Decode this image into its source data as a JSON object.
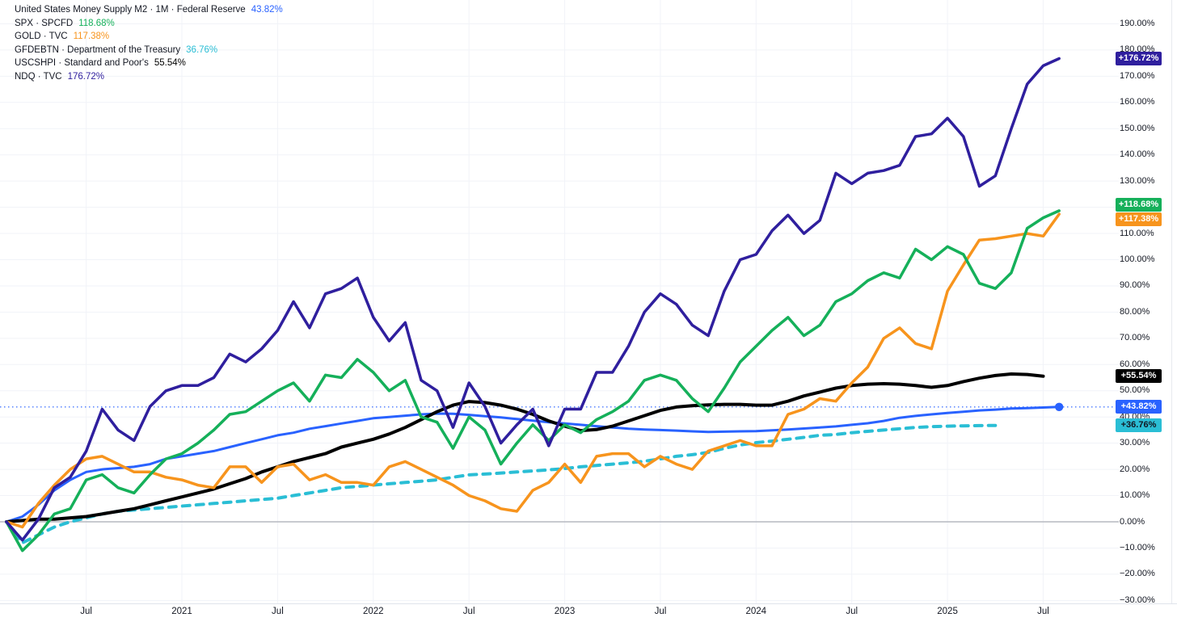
{
  "app": {
    "name": "price-percent-comparison-chart"
  },
  "legend": {
    "series": [
      {
        "series_id": "m2",
        "label": "United States Money Supply M2 · 1M · Federal Reserve",
        "value": "43.82%"
      },
      {
        "series_id": "spx",
        "label": "SPX · SPCFD",
        "value": "118.68%"
      },
      {
        "series_id": "gold",
        "label": "GOLD · TVC",
        "value": "117.38%"
      },
      {
        "series_id": "gfdebtn",
        "label": "GFDEBTN · Department of the Treasury",
        "value": "36.76%"
      },
      {
        "series_id": "uscshpi",
        "label": "USCSHPI · Standard and Poor's",
        "value": "55.54%"
      },
      {
        "series_id": "ndq",
        "label": "NDQ · TVC",
        "value": "176.72%"
      }
    ]
  },
  "y_axis": {
    "unit": "%",
    "tick_values": [
      190,
      180,
      170,
      160,
      150,
      140,
      130,
      120,
      110,
      100,
      90,
      80,
      70,
      60,
      50,
      40,
      30,
      20,
      10,
      0,
      -10,
      -20,
      -30
    ]
  },
  "x_axis": {
    "ticks": [
      {
        "label": "Jul",
        "month_index": 5
      },
      {
        "label": "2021",
        "month_index": 11
      },
      {
        "label": "Jul",
        "month_index": 17
      },
      {
        "label": "2022",
        "month_index": 23
      },
      {
        "label": "Jul",
        "month_index": 29
      },
      {
        "label": "2023",
        "month_index": 35
      },
      {
        "label": "Jul",
        "month_index": 41
      },
      {
        "label": "2024",
        "month_index": 47
      },
      {
        "label": "Jul",
        "month_index": 53
      },
      {
        "label": "2025",
        "month_index": 59
      },
      {
        "label": "Jul",
        "month_index": 65
      }
    ]
  },
  "price_badges": [
    {
      "series_id": "ndq",
      "text": "+176.72%",
      "bg": "#2f1f9e",
      "fg": "#ffffff",
      "value": 176.72
    },
    {
      "series_id": "spx",
      "text": "+118.68%",
      "bg": "#15b05a",
      "fg": "#ffffff",
      "value": 118.68
    },
    {
      "series_id": "gold",
      "text": "+117.38%",
      "bg": "#f7941d",
      "fg": "#ffffff",
      "value": 117.38
    },
    {
      "series_id": "uscshpi",
      "text": "+55.54%",
      "bg": "#000000",
      "fg": "#ffffff",
      "value": 55.54
    },
    {
      "series_id": "m2",
      "text": "+43.82%",
      "bg": "#2962ff",
      "fg": "#ffffff",
      "value": 43.82
    },
    {
      "series_id": "gfdebtn",
      "text": "+36.76%",
      "bg": "#2abed5",
      "fg": "#131722",
      "value": 36.76
    }
  ],
  "chart_data": {
    "type": "line",
    "x_start": "2020-02",
    "x_interval": "monthly",
    "x_end": "2025-08",
    "ylabel": "percent change since start date",
    "ylim": [
      -30,
      190
    ],
    "y_gridline_step": 10,
    "grid": true,
    "legend_position": "top-left",
    "baseline_value": 0,
    "current_price_line": {
      "series_id": "m2",
      "value": 43.82
    },
    "series": [
      {
        "id": "gfdebtn",
        "name": "GFDEBTN · Department of the Treasury",
        "color": "#2abed5",
        "line_style": "dashed",
        "line_width": 4,
        "end_value": 36.76,
        "values": [
          0,
          -8,
          -5,
          -2,
          0,
          1.5,
          3,
          4,
          4.5,
          5,
          5.5,
          6,
          6.5,
          7,
          7.5,
          8,
          8.5,
          9,
          10,
          11,
          12,
          13,
          13.5,
          14,
          14.5,
          15,
          15.5,
          16,
          17,
          17.9,
          18.2,
          18.6,
          19,
          19.4,
          19.8,
          20.3,
          21,
          21.5,
          22,
          22.5,
          23.1,
          24,
          25,
          25.6,
          26.5,
          28,
          29.3,
          30.2,
          30.8,
          31.5,
          32.2,
          33,
          33.3,
          34,
          34.5,
          35,
          35.5,
          36,
          36.3,
          36.5,
          36.6,
          36.7,
          36.76
        ]
      },
      {
        "id": "m2",
        "name": "United States Money Supply M2",
        "color": "#2962ff",
        "line_style": "solid",
        "line_width": 3,
        "end_dot": true,
        "end_value": 43.82,
        "values": [
          0,
          2,
          6.5,
          12,
          16,
          19,
          20,
          20.5,
          21,
          22,
          24,
          25,
          26,
          27,
          28.5,
          30,
          31.5,
          33,
          34,
          35.5,
          36.5,
          37.5,
          38.5,
          39.5,
          40,
          40.5,
          41,
          41.3,
          41.2,
          40.8,
          40.3,
          39.8,
          39.2,
          38.6,
          38,
          37.5,
          37,
          36.5,
          36,
          35.5,
          35.2,
          35,
          34.8,
          34.5,
          34.3,
          34.4,
          34.5,
          34.6,
          34.9,
          35.2,
          35.6,
          36,
          36.4,
          37,
          37.6,
          38.5,
          39.7,
          40.4,
          41,
          41.5,
          42,
          42.5,
          42.8,
          43.2,
          43.4,
          43.6,
          43.82
        ]
      },
      {
        "id": "uscshpi",
        "name": "USCSHPI · Standard and Poor's",
        "color": "#000000",
        "line_style": "solid",
        "line_width": 4,
        "end_value": 55.54,
        "values": [
          0,
          0.5,
          1,
          1,
          1.5,
          2,
          3,
          4,
          5,
          6.5,
          8,
          9.5,
          11,
          12.5,
          14.5,
          16.5,
          19,
          21,
          23,
          24.5,
          26,
          28.5,
          30,
          31.5,
          33.5,
          36,
          39,
          42,
          44.5,
          45.9,
          45.5,
          44.5,
          43,
          41,
          38.5,
          36.5,
          34.8,
          35.2,
          36.5,
          38.5,
          40.5,
          42.5,
          43.8,
          44.3,
          44.6,
          44.8,
          44.8,
          44.5,
          44.5,
          46,
          48,
          49.5,
          51,
          52,
          52.5,
          52.7,
          52.5,
          52,
          51.3,
          52,
          53.5,
          54.8,
          55.8,
          56.4,
          56.2,
          55.54
        ]
      },
      {
        "id": "gold",
        "name": "GOLD · TVC",
        "color": "#f7941d",
        "line_style": "solid",
        "line_width": 3.5,
        "end_value": 117.38,
        "values": [
          0,
          -2,
          7,
          14,
          20,
          24,
          25,
          22,
          19,
          19,
          17,
          16,
          14,
          13,
          21,
          21,
          15,
          21,
          22,
          16,
          18,
          15,
          15,
          14,
          21,
          23,
          20,
          17,
          14,
          10,
          8,
          5,
          4,
          12,
          15,
          22,
          15,
          25,
          26,
          26,
          21,
          25,
          22,
          20,
          27,
          29,
          31,
          29,
          29,
          41,
          43,
          47,
          46,
          53,
          59,
          70,
          74,
          68,
          66,
          88,
          98,
          107.5,
          108,
          109,
          110,
          109,
          117.38
        ]
      },
      {
        "id": "spx",
        "name": "SPX · SPCFD",
        "color": "#15b05a",
        "line_style": "solid",
        "line_width": 3.5,
        "end_value": 118.68,
        "values": [
          0,
          -11,
          -5,
          3,
          5,
          16,
          18,
          13,
          11,
          18,
          24,
          26,
          30,
          35,
          41,
          42,
          46,
          50,
          53,
          46,
          56,
          55,
          62,
          57,
          50,
          54,
          40,
          38,
          28,
          40,
          35,
          22,
          30,
          37,
          31,
          37,
          34,
          39,
          42,
          46,
          54,
          56,
          54,
          47,
          42,
          51,
          61,
          67,
          73,
          78,
          71,
          75,
          84,
          87,
          92,
          95,
          93,
          104,
          100,
          105,
          102,
          91,
          89,
          95,
          112,
          116,
          118.68
        ]
      },
      {
        "id": "ndq",
        "name": "NDQ · TVC",
        "color": "#2f1f9e",
        "line_style": "solid",
        "line_width": 3.5,
        "end_value": 176.72,
        "values": [
          0,
          -7,
          1,
          13,
          17,
          27,
          43,
          35,
          31,
          44,
          50,
          52,
          52,
          55,
          64,
          61,
          66,
          73,
          84,
          74,
          87,
          89,
          93,
          78,
          69,
          76,
          54,
          50,
          36,
          53,
          44,
          30,
          37,
          43,
          29,
          43,
          43,
          57,
          57,
          67,
          80,
          87,
          83,
          75,
          71,
          88,
          100,
          102,
          111,
          117,
          110,
          115,
          133,
          129,
          133,
          134,
          136,
          147,
          148,
          154,
          147,
          128,
          132,
          150,
          167,
          174,
          176.72
        ]
      }
    ]
  },
  "colors": {
    "background": "#ffffff",
    "grid": "#f1f3f8",
    "zero_line": "#b6b9c1",
    "axis_text": "#131722",
    "legend_text": "#131722",
    "axis_border": "#e0e3eb",
    "price_line_dotted": "#2962ff"
  }
}
